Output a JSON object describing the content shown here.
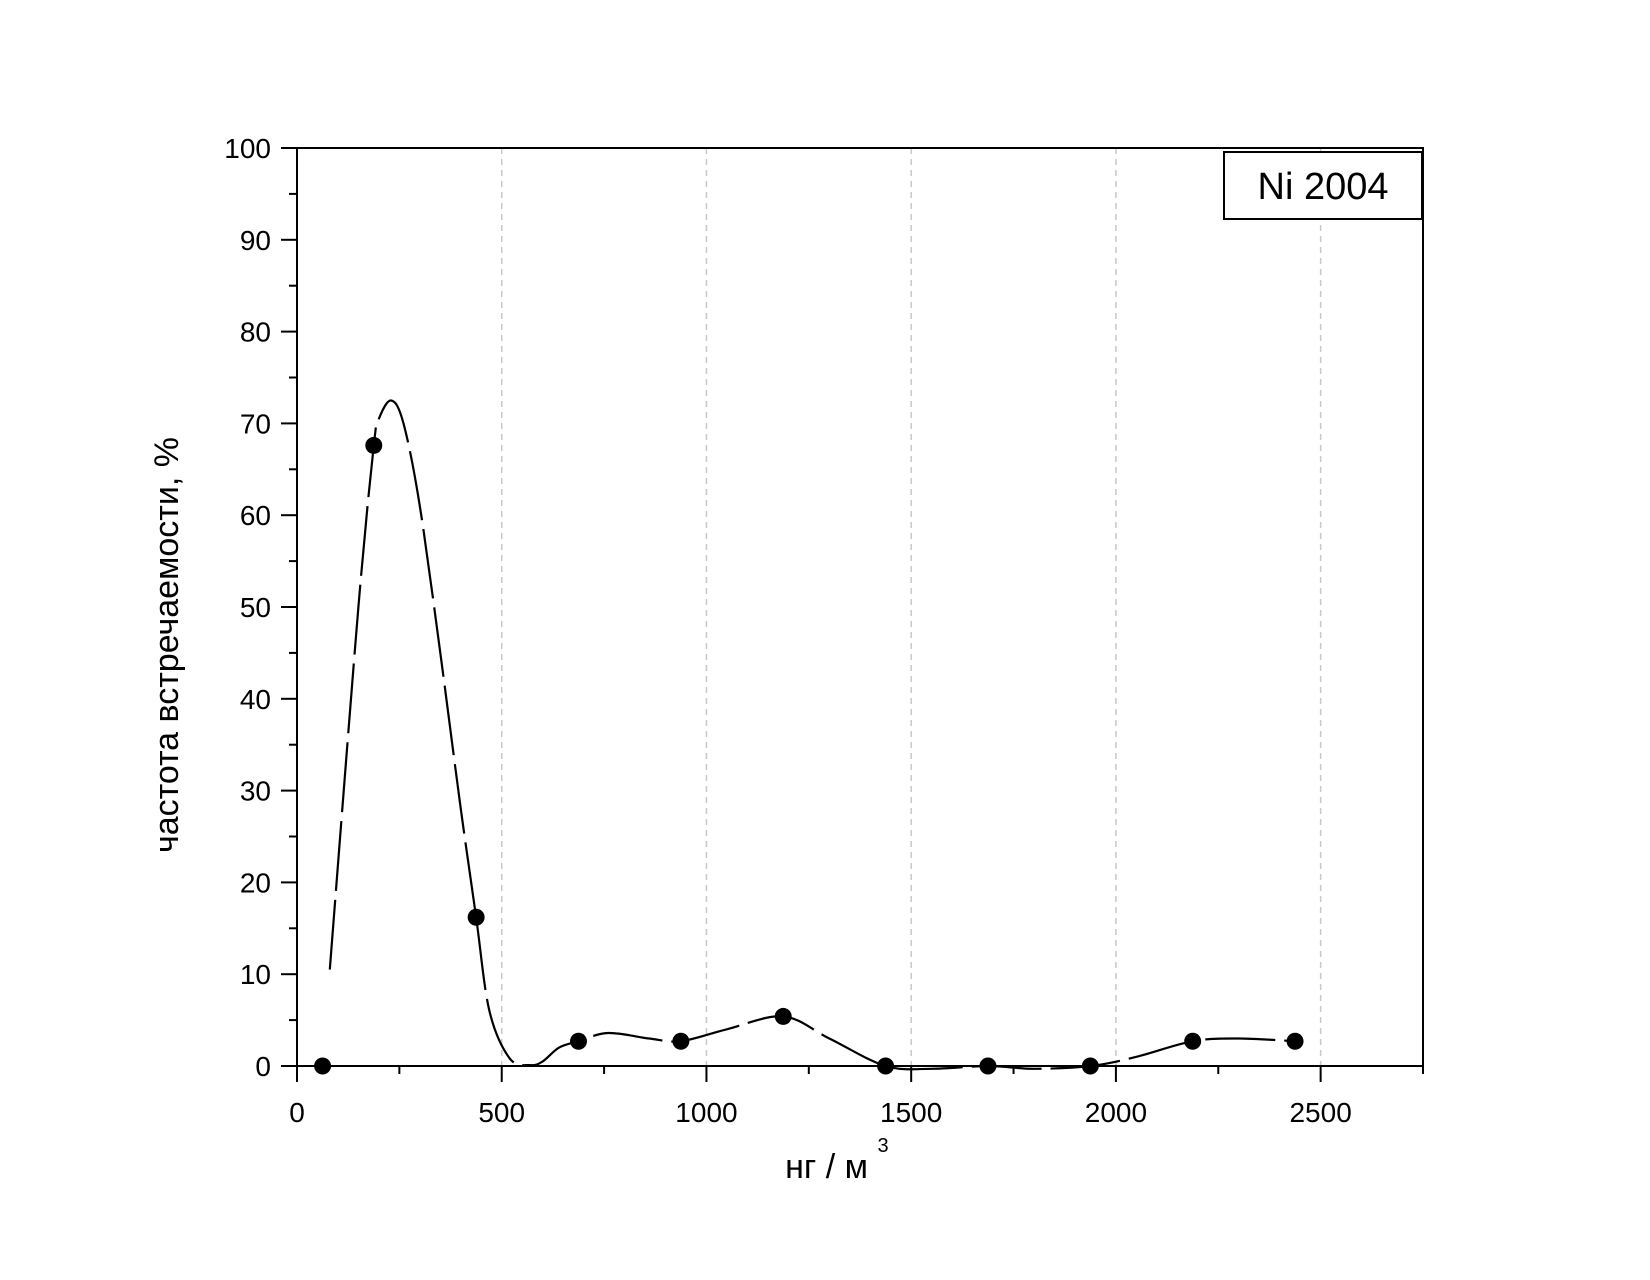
{
  "chart_data": {
    "type": "line",
    "legend": "Ni 2004",
    "legend_position": "top-right",
    "xlabel": "нг / м",
    "xlabel_superscript": "3",
    "ylabel": "частота встречаемости, %",
    "xlim": [
      0,
      2750
    ],
    "ylim": [
      0,
      100
    ],
    "x_ticks": [
      0,
      500,
      1000,
      1500,
      2000,
      2500
    ],
    "x_tick_labels": [
      "0",
      "500",
      "1000",
      "1500",
      "2000",
      "2500"
    ],
    "y_ticks": [
      0,
      10,
      20,
      30,
      40,
      50,
      60,
      70,
      80,
      90,
      100
    ],
    "y_tick_labels": [
      "0",
      "10",
      "20",
      "30",
      "40",
      "50",
      "60",
      "70",
      "80",
      "90",
      "100"
    ],
    "grid": "vertical dashed",
    "series": [
      {
        "marker": "filled-circle",
        "x": [
          62.5,
          187.5,
          437.5,
          687.5,
          937.5,
          1187.5,
          1437.5,
          1687.5,
          1937.5,
          2187.5,
          2437.5
        ],
        "y": [
          0,
          67.6,
          16.2,
          2.7,
          2.7,
          5.4,
          0,
          0,
          0,
          2.7,
          2.7
        ]
      }
    ],
    "curve": {
      "style": "smooth spline, drawn with gaps at the points",
      "x": [
        80,
        150,
        187.5,
        200,
        230,
        260,
        300,
        350,
        400,
        437.5,
        470,
        520,
        570,
        600,
        640,
        687.5,
        760,
        860,
        937.5,
        1050,
        1187.5,
        1300,
        1437.5,
        1550,
        1687.5,
        1800,
        1937.5,
        2050,
        2187.5,
        2300,
        2437.5
      ],
      "y": [
        10.5,
        50,
        67.6,
        70.5,
        72.5,
        70,
        61,
        45,
        28,
        16.2,
        6,
        0.8,
        0.1,
        0.5,
        2,
        2.7,
        3.6,
        3,
        2.7,
        4,
        5.4,
        3,
        0,
        -0.3,
        0,
        -0.3,
        0,
        1,
        2.7,
        3,
        2.7
      ]
    }
  }
}
